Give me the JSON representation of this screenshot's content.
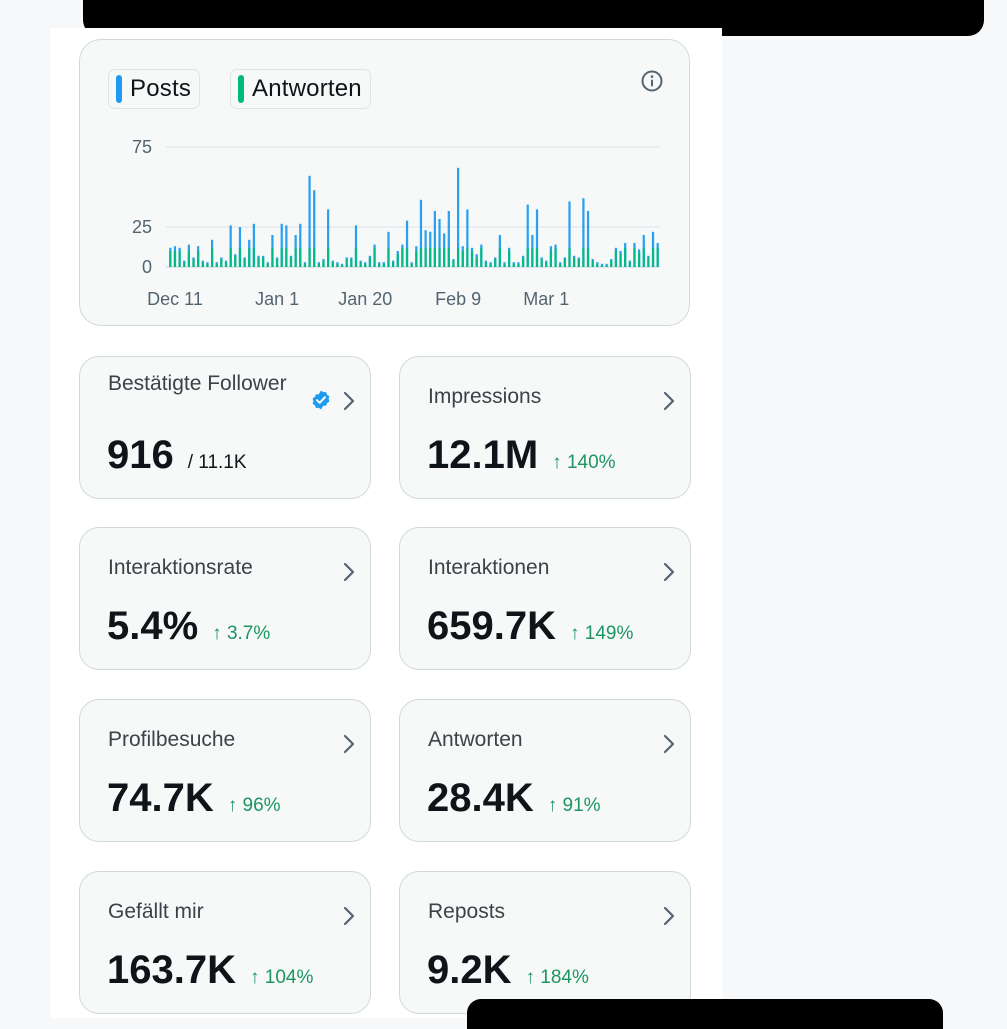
{
  "legend": [
    {
      "label": "Posts",
      "color": "#1d9bf0"
    },
    {
      "label": "Antworten",
      "color": "#00ba7c"
    }
  ],
  "icons": {
    "info": "info-circle-icon",
    "chevron": "chevron-right-icon",
    "verified": "verified-badge-icon"
  },
  "chart_data": {
    "type": "bar",
    "title": "",
    "xlabel": "",
    "ylabel": "",
    "ylim": [
      0,
      75
    ],
    "y_ticks": [
      "75",
      "25",
      "0"
    ],
    "x_ticks": [
      "Dec 11",
      "Jan 1",
      "Jan 20",
      "Feb 9",
      "Mar 1"
    ],
    "x_tick_indices": [
      1,
      23,
      42,
      62,
      81
    ],
    "series": [
      {
        "name": "Posts",
        "color": "#1d9bf0",
        "values": [
          12,
          13,
          12,
          4,
          14,
          6,
          13,
          4,
          3,
          17,
          3,
          6,
          4,
          26,
          8,
          25,
          6,
          17,
          27,
          7,
          7,
          3,
          20,
          6,
          27,
          26,
          7,
          20,
          27,
          3,
          57,
          48,
          3,
          5,
          36,
          4,
          3,
          2,
          6,
          6,
          26,
          4,
          3,
          7,
          14,
          3,
          3,
          22,
          4,
          10,
          14,
          29,
          3,
          13,
          42,
          23,
          22,
          35,
          30,
          21,
          35,
          5,
          62,
          13,
          36,
          12,
          8,
          14,
          4,
          3,
          6,
          20,
          3,
          12,
          3,
          3,
          7,
          39,
          20,
          36,
          6,
          4,
          13,
          14,
          3,
          6,
          41,
          7,
          6,
          43,
          35,
          5,
          3,
          2,
          2,
          5,
          12,
          10,
          15,
          4,
          15,
          11,
          20,
          7,
          22,
          15
        ]
      },
      {
        "name": "Antworten",
        "color": "#00ba7c",
        "values": [
          10,
          10,
          10,
          3,
          10,
          5,
          10,
          3,
          2,
          12,
          2,
          5,
          3,
          12,
          7,
          12,
          5,
          12,
          12,
          6,
          6,
          2,
          12,
          5,
          12,
          12,
          6,
          12,
          12,
          2,
          12,
          12,
          2,
          4,
          12,
          3,
          2,
          1,
          5,
          5,
          12,
          3,
          2,
          6,
          12,
          2,
          2,
          12,
          3,
          8,
          12,
          12,
          2,
          10,
          12,
          12,
          12,
          12,
          12,
          12,
          12,
          4,
          12,
          10,
          12,
          10,
          6,
          12,
          3,
          2,
          5,
          12,
          2,
          10,
          2,
          2,
          6,
          12,
          12,
          12,
          5,
          3,
          10,
          12,
          2,
          5,
          12,
          6,
          5,
          12,
          12,
          4,
          2,
          1,
          1,
          4,
          10,
          8,
          12,
          3,
          12,
          9,
          12,
          6,
          12,
          12
        ]
      }
    ]
  },
  "stats": [
    {
      "name": "verified-followers",
      "label": "Bestätigte Follower",
      "value": "916",
      "suffix": "/ 11.1K",
      "delta": ""
    },
    {
      "name": "impressions",
      "label": "Impressions",
      "value": "12.1M",
      "delta": "↑ 140%"
    },
    {
      "name": "engagement-rate",
      "label": "Interaktionsrate",
      "value": "5.4%",
      "delta": "↑ 3.7%"
    },
    {
      "name": "engagements",
      "label": "Interaktionen",
      "value": "659.7K",
      "delta": "↑ 149%"
    },
    {
      "name": "profile-visits",
      "label": "Profilbesuche",
      "value": "74.7K",
      "delta": "↑ 96%"
    },
    {
      "name": "replies",
      "label": "Antworten",
      "value": "28.4K",
      "delta": "↑ 91%"
    },
    {
      "name": "likes",
      "label": "Gefällt mir",
      "value": "163.7K",
      "delta": "↑ 104%"
    },
    {
      "name": "reposts",
      "label": "Reposts",
      "value": "9.2K",
      "delta": "↑ 184%"
    }
  ]
}
